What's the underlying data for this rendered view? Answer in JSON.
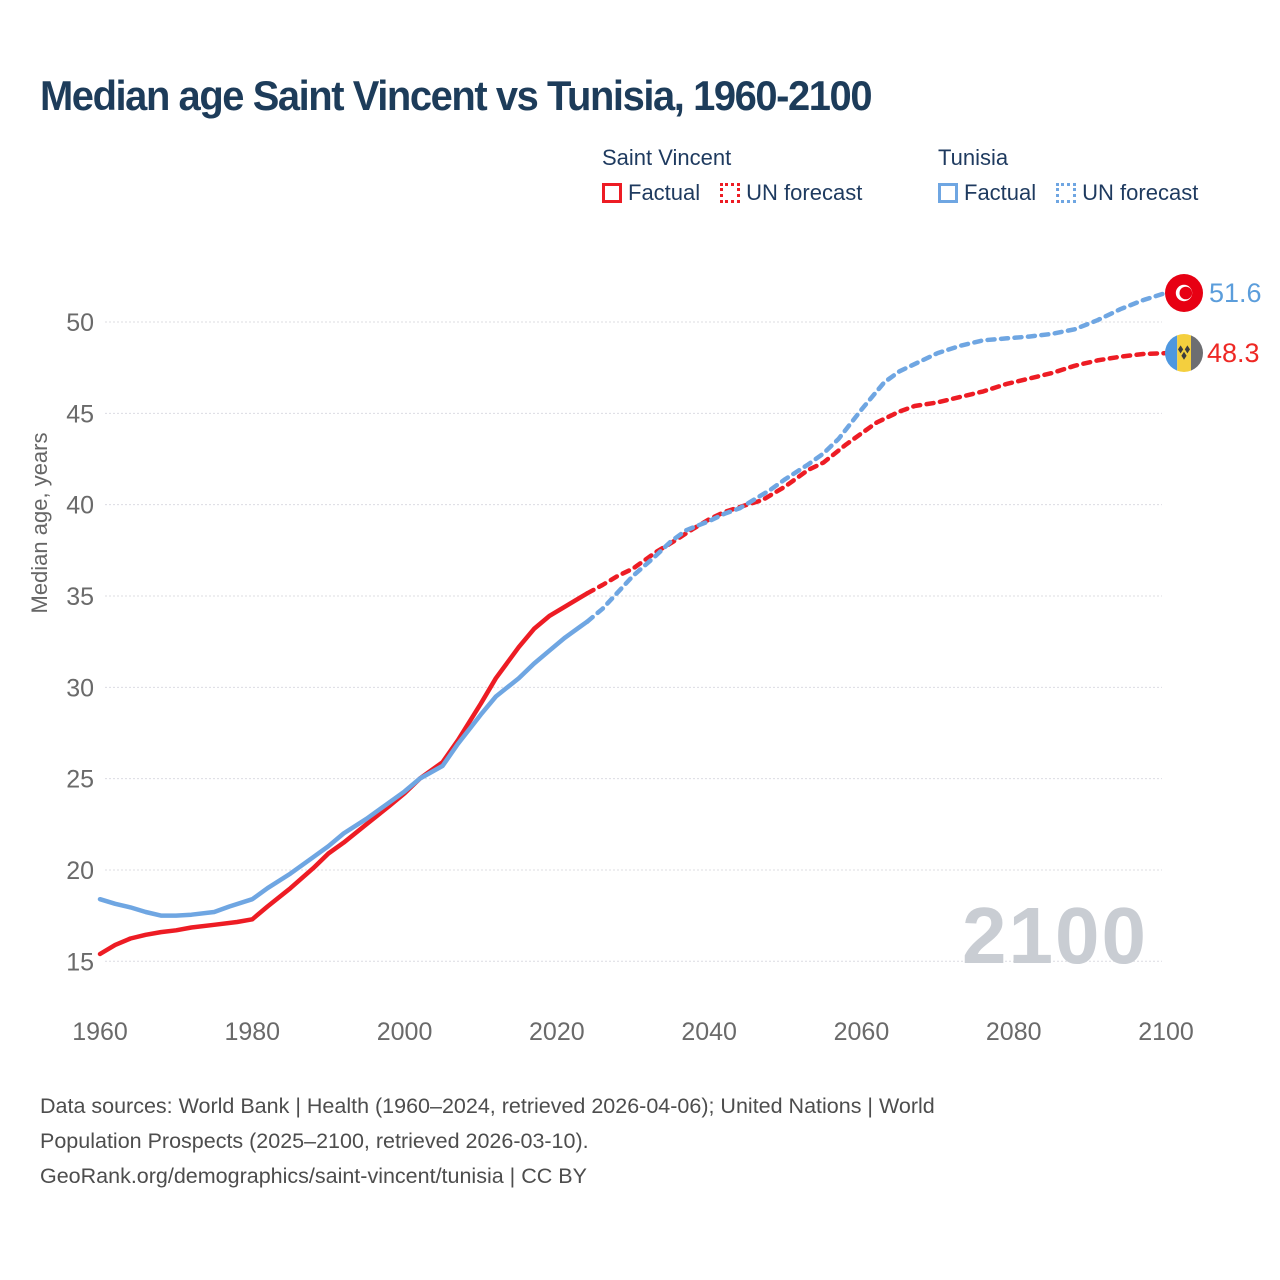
{
  "title": "Median age Saint Vincent vs Tunisia, 1960-2100",
  "legend": {
    "groups": [
      {
        "label": "Saint Vincent",
        "color": "#ed1c24",
        "items": [
          {
            "label": "Factual",
            "style": "solid"
          },
          {
            "label": "UN forecast",
            "style": "dotted"
          }
        ]
      },
      {
        "label": "Tunisia",
        "color": "#6fa6e2",
        "items": [
          {
            "label": "Factual",
            "style": "solid"
          },
          {
            "label": "UN forecast",
            "style": "dotted"
          }
        ]
      }
    ]
  },
  "chart_data": {
    "type": "line",
    "title": "Median age Saint Vincent vs Tunisia, 1960-2100",
    "xlabel": "",
    "ylabel": "Median age, years",
    "watermark": "2100",
    "xlim": [
      1960,
      2100
    ],
    "ylim": [
      15,
      52
    ],
    "x_ticks": [
      "1960",
      "1980",
      "2000",
      "2020",
      "2040",
      "2060",
      "2080",
      "2100"
    ],
    "y_ticks": [
      "15",
      "20",
      "25",
      "30",
      "35",
      "40",
      "45",
      "50"
    ],
    "grid": true,
    "legend_position": "top-right",
    "series": [
      {
        "name": "Saint Vincent — Factual",
        "color": "#ed1c24",
        "dash": false,
        "points": [
          [
            1960,
            15.4
          ],
          [
            1962,
            15.9
          ],
          [
            1964,
            16.25
          ],
          [
            1966,
            16.45
          ],
          [
            1968,
            16.6
          ],
          [
            1970,
            16.7
          ],
          [
            1972,
            16.85
          ],
          [
            1975,
            17.0
          ],
          [
            1978,
            17.15
          ],
          [
            1980,
            17.3
          ],
          [
            1982,
            18.0
          ],
          [
            1985,
            19.0
          ],
          [
            1988,
            20.1
          ],
          [
            1990,
            20.9
          ],
          [
            1992,
            21.5
          ],
          [
            1995,
            22.5
          ],
          [
            1998,
            23.5
          ],
          [
            2000,
            24.2
          ],
          [
            2002,
            25.0
          ],
          [
            2005,
            25.9
          ],
          [
            2007,
            27.1
          ],
          [
            2010,
            29.1
          ],
          [
            2012,
            30.5
          ],
          [
            2015,
            32.2
          ],
          [
            2017,
            33.2
          ],
          [
            2019,
            33.9
          ],
          [
            2021,
            34.4
          ],
          [
            2023,
            34.9
          ],
          [
            2024,
            35.15
          ]
        ]
      },
      {
        "name": "Saint Vincent — UN forecast",
        "color": "#ed1c24",
        "dash": true,
        "points": [
          [
            2024,
            35.15
          ],
          [
            2026,
            35.6
          ],
          [
            2028,
            36.1
          ],
          [
            2030,
            36.5
          ],
          [
            2033,
            37.4
          ],
          [
            2035,
            37.9
          ],
          [
            2038,
            38.7
          ],
          [
            2040,
            39.2
          ],
          [
            2042,
            39.6
          ],
          [
            2045,
            40.0
          ],
          [
            2047,
            40.25
          ],
          [
            2050,
            41.0
          ],
          [
            2053,
            41.9
          ],
          [
            2055,
            42.3
          ],
          [
            2058,
            43.3
          ],
          [
            2060,
            43.9
          ],
          [
            2062,
            44.5
          ],
          [
            2065,
            45.1
          ],
          [
            2067,
            45.4
          ],
          [
            2070,
            45.6
          ],
          [
            2073,
            45.9
          ],
          [
            2076,
            46.2
          ],
          [
            2079,
            46.6
          ],
          [
            2082,
            46.9
          ],
          [
            2085,
            47.2
          ],
          [
            2088,
            47.6
          ],
          [
            2091,
            47.9
          ],
          [
            2094,
            48.1
          ],
          [
            2097,
            48.25
          ],
          [
            2100,
            48.3
          ]
        ]
      },
      {
        "name": "Tunisia — Factual",
        "color": "#6fa6e2",
        "dash": false,
        "points": [
          [
            1960,
            18.4
          ],
          [
            1962,
            18.15
          ],
          [
            1964,
            17.95
          ],
          [
            1966,
            17.7
          ],
          [
            1968,
            17.5
          ],
          [
            1970,
            17.5
          ],
          [
            1972,
            17.55
          ],
          [
            1975,
            17.7
          ],
          [
            1977,
            18.0
          ],
          [
            1980,
            18.4
          ],
          [
            1982,
            19.0
          ],
          [
            1985,
            19.8
          ],
          [
            1988,
            20.7
          ],
          [
            1990,
            21.3
          ],
          [
            1992,
            22.0
          ],
          [
            1995,
            22.8
          ],
          [
            1998,
            23.7
          ],
          [
            2000,
            24.3
          ],
          [
            2002,
            25.0
          ],
          [
            2005,
            25.7
          ],
          [
            2007,
            26.9
          ],
          [
            2010,
            28.5
          ],
          [
            2012,
            29.5
          ],
          [
            2015,
            30.5
          ],
          [
            2017,
            31.3
          ],
          [
            2019,
            32.0
          ],
          [
            2021,
            32.7
          ],
          [
            2023,
            33.3
          ],
          [
            2024,
            33.6
          ]
        ]
      },
      {
        "name": "Tunisia — UN forecast",
        "color": "#6fa6e2",
        "dash": true,
        "points": [
          [
            2024,
            33.6
          ],
          [
            2026,
            34.3
          ],
          [
            2028,
            35.2
          ],
          [
            2030,
            36.1
          ],
          [
            2033,
            37.2
          ],
          [
            2035,
            38.0
          ],
          [
            2037,
            38.6
          ],
          [
            2040,
            39.1
          ],
          [
            2042,
            39.5
          ],
          [
            2044,
            39.8
          ],
          [
            2046,
            40.3
          ],
          [
            2048,
            40.8
          ],
          [
            2050,
            41.4
          ],
          [
            2053,
            42.2
          ],
          [
            2055,
            42.8
          ],
          [
            2057,
            43.6
          ],
          [
            2060,
            45.2
          ],
          [
            2063,
            46.7
          ],
          [
            2065,
            47.3
          ],
          [
            2068,
            47.9
          ],
          [
            2070,
            48.3
          ],
          [
            2073,
            48.7
          ],
          [
            2076,
            49.0
          ],
          [
            2079,
            49.1
          ],
          [
            2082,
            49.2
          ],
          [
            2085,
            49.35
          ],
          [
            2088,
            49.6
          ],
          [
            2091,
            50.1
          ],
          [
            2094,
            50.7
          ],
          [
            2097,
            51.2
          ],
          [
            2100,
            51.6
          ]
        ]
      }
    ],
    "end_labels": [
      {
        "country": "Tunisia",
        "value": "51.6",
        "color": "#5b9ddb"
      },
      {
        "country": "Saint Vincent",
        "value": "48.3",
        "color": "#ee2824"
      }
    ]
  },
  "footer": {
    "line1": "Data sources: World Bank | Health (1960–2024, retrieved 2026-04-06); United Nations | World",
    "line2": "Population Prospects (2025–2100, retrieved 2026-03-10).",
    "line3": "GeoRank.org/demographics/saint-vincent/tunisia | CC BY"
  }
}
